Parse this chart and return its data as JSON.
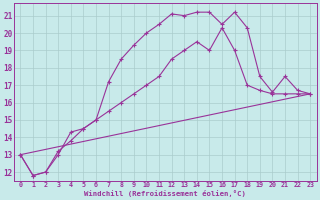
{
  "background_color": "#c8eaea",
  "grid_color": "#aacccc",
  "line_color": "#993399",
  "xlabel": "Windchill (Refroidissement éolien,°C)",
  "y_ticks": [
    12,
    13,
    14,
    15,
    16,
    17,
    18,
    19,
    20,
    21
  ],
  "x_ticks": [
    0,
    1,
    2,
    3,
    4,
    5,
    6,
    7,
    8,
    9,
    10,
    11,
    12,
    13,
    14,
    15,
    16,
    17,
    18,
    19,
    20,
    21,
    22,
    23
  ],
  "xlim": [
    -0.5,
    23.5
  ],
  "ylim": [
    11.5,
    21.7
  ],
  "line1_x": [
    0,
    1,
    2,
    3,
    4,
    5,
    6,
    7,
    8,
    9,
    10,
    11,
    12,
    13,
    14,
    15,
    16,
    17,
    18,
    19,
    20,
    21,
    22,
    23
  ],
  "line1_y": [
    13.0,
    11.8,
    12.0,
    13.0,
    14.3,
    14.5,
    15.0,
    15.5,
    16.0,
    16.5,
    17.0,
    17.5,
    18.5,
    19.0,
    19.5,
    19.0,
    20.3,
    19.0,
    17.0,
    16.7,
    16.5,
    16.5,
    16.5,
    16.5
  ],
  "line2_x": [
    0,
    1,
    2,
    3,
    4,
    5,
    6,
    7,
    8,
    9,
    10,
    11,
    12,
    13,
    14,
    15,
    16,
    17,
    18,
    19,
    20,
    21,
    22,
    23
  ],
  "line2_y": [
    13.0,
    11.8,
    12.0,
    13.2,
    13.8,
    14.5,
    15.0,
    17.2,
    18.5,
    19.3,
    20.0,
    20.5,
    21.1,
    21.0,
    21.2,
    21.2,
    20.5,
    21.2,
    20.3,
    17.5,
    16.6,
    17.5,
    16.7,
    16.5
  ],
  "line3_x": [
    0,
    23
  ],
  "line3_y": [
    13.0,
    16.5
  ]
}
